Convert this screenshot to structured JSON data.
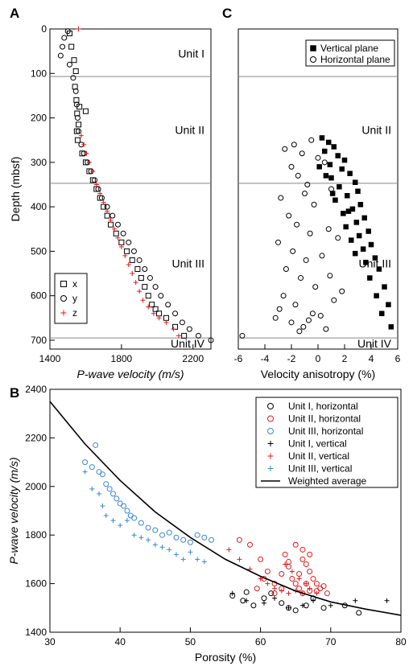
{
  "chart_data": [
    {
      "panel": "A",
      "type": "scatter",
      "xlabel": "P-wave velocity (m/s)",
      "ylabel": "Depth (mbsf)",
      "xlim": [
        1400,
        2300
      ],
      "ylim": [
        720,
        0
      ],
      "xticks": [
        "1400",
        "1800",
        "2200"
      ],
      "yticks": [
        "0",
        "100",
        "200",
        "300",
        "400",
        "500",
        "600",
        "700"
      ],
      "unit_boundaries": [
        107,
        347,
        695
      ],
      "units": [
        {
          "label": "Unit I",
          "depth": 55
        },
        {
          "label": "Unit II",
          "depth": 227
        },
        {
          "label": "Unit III",
          "depth": 527
        },
        {
          "label": "Unit IV",
          "depth": 707
        }
      ],
      "legend": {
        "position": "bottom-left"
      },
      "series": [
        {
          "name": "x",
          "marker": "square",
          "color": "#000000",
          "x": [
            1510,
            1520,
            1535,
            1545,
            1540,
            1548,
            1552,
            1560,
            1550,
            1555,
            1565,
            1600,
            1580,
            1600,
            1620,
            1640,
            1660,
            1680,
            1700,
            1720,
            1740,
            1770,
            1800,
            1830,
            1860,
            1890,
            1910,
            1930,
            1950,
            1970,
            1990,
            2010,
            2050,
            2100,
            2150
          ],
          "y": [
            10,
            40,
            70,
            95,
            130,
            160,
            190,
            215,
            230,
            250,
            175,
            185,
            280,
            300,
            320,
            340,
            360,
            380,
            400,
            420,
            440,
            460,
            480,
            500,
            520,
            540,
            560,
            580,
            600,
            620,
            630,
            640,
            650,
            670,
            690
          ]
        },
        {
          "name": "y",
          "marker": "circle",
          "color": "#000000",
          "x": [
            1500,
            1480,
            1470,
            1460,
            1510,
            1530,
            1545,
            1550,
            1555,
            1560,
            1575,
            1590,
            1610,
            1630,
            1650,
            1670,
            1690,
            1720,
            1750,
            1780,
            1810,
            1840,
            1870,
            1900,
            1930,
            1960,
            1990,
            2020,
            2060,
            2100,
            2140,
            2180,
            2230,
            2300
          ],
          "y": [
            5,
            20,
            40,
            60,
            80,
            110,
            140,
            170,
            200,
            230,
            260,
            280,
            300,
            320,
            340,
            360,
            380,
            400,
            420,
            440,
            460,
            480,
            500,
            520,
            540,
            560,
            580,
            600,
            620,
            640,
            660,
            675,
            690,
            700
          ]
        },
        {
          "name": "z",
          "marker": "plus",
          "color": "#e41a1c",
          "x": [
            1560,
            1575,
            1590,
            1605,
            1620,
            1640,
            1660,
            1680,
            1700,
            1720,
            1740,
            1760,
            1780,
            1800,
            1820,
            1840,
            1860,
            1880,
            1900,
            1920,
            1950,
            1980,
            2010,
            2050,
            2090,
            2120
          ],
          "y": [
            0,
            240,
            260,
            280,
            300,
            320,
            350,
            370,
            390,
            410,
            430,
            450,
            470,
            490,
            510,
            530,
            550,
            570,
            590,
            610,
            625,
            640,
            650,
            660,
            675,
            690
          ]
        }
      ]
    },
    {
      "panel": "C",
      "type": "scatter",
      "xlabel": "Velocity anisotropy (%)",
      "xlim": [
        -6,
        6
      ],
      "ylim": [
        720,
        0
      ],
      "xticks": [
        "-6",
        "-4",
        "-2",
        "0",
        "2",
        "4",
        "6"
      ],
      "unit_boundaries": [
        107,
        347,
        695
      ],
      "units": [
        {
          "label": "Unit I",
          "depth": 55
        },
        {
          "label": "Unit II",
          "depth": 227
        },
        {
          "label": "Unit III",
          "depth": 527
        },
        {
          "label": "Unit IV",
          "depth": 707
        }
      ],
      "legend": {
        "position": "top-right"
      },
      "series": [
        {
          "name": "Vertical plane",
          "marker": "filled-square",
          "color": "#000000",
          "x": [
            0.3,
            0.8,
            1.2,
            0.5,
            1.5,
            2.0,
            0.9,
            1.8,
            2.4,
            1.0,
            2.8,
            1.6,
            3.0,
            2.2,
            1.3,
            3.2,
            2.6,
            1.9,
            3.5,
            2.9,
            2.1,
            3.8,
            3.1,
            2.5,
            4.0,
            3.4,
            2.8,
            4.3,
            3.6,
            4.6,
            3.9,
            5.0,
            4.4,
            5.3,
            4.8,
            5.5,
            0.1,
            0.6,
            1.1,
            2.3
          ],
          "y": [
            245,
            255,
            265,
            275,
            285,
            295,
            305,
            315,
            325,
            335,
            345,
            355,
            365,
            375,
            385,
            395,
            405,
            415,
            425,
            435,
            445,
            455,
            465,
            475,
            485,
            495,
            505,
            515,
            525,
            540,
            560,
            580,
            600,
            620,
            640,
            670,
            310,
            330,
            370,
            410
          ]
        },
        {
          "name": "Horizontal plane",
          "marker": "circle",
          "color": "#000000",
          "x": [
            -2.5,
            -1.8,
            -1.2,
            -0.5,
            0.0,
            -2.0,
            -1.5,
            -0.8,
            0.5,
            -2.8,
            -1.0,
            -0.3,
            1.0,
            -2.2,
            -1.6,
            -0.6,
            0.8,
            -3.0,
            -1.9,
            -0.9,
            0.3,
            1.5,
            -2.4,
            -1.3,
            -0.2,
            0.9,
            -2.6,
            -1.7,
            -0.4,
            1.2,
            -3.2,
            -2.0,
            -1.1,
            0.2,
            1.8,
            -2.9,
            -1.4,
            -0.7,
            0.6,
            -5.7
          ],
          "y": [
            270,
            260,
            280,
            250,
            290,
            310,
            330,
            350,
            300,
            380,
            370,
            395,
            360,
            420,
            440,
            460,
            450,
            480,
            500,
            520,
            510,
            470,
            540,
            560,
            580,
            555,
            600,
            620,
            640,
            610,
            650,
            660,
            670,
            645,
            590,
            630,
            680,
            655,
            675,
            690
          ]
        }
      ]
    },
    {
      "panel": "B",
      "type": "scatter",
      "xlabel": "Porosity (%)",
      "ylabel": "P-wave velocity (m/s)",
      "xlim": [
        30,
        80
      ],
      "ylim": [
        1400,
        2400
      ],
      "xticks": [
        "30",
        "40",
        "50",
        "60",
        "70",
        "80"
      ],
      "yticks": [
        "1400",
        "1600",
        "1800",
        "2000",
        "2200",
        "2400"
      ],
      "legend": {
        "position": "top-right"
      },
      "series": [
        {
          "name": "Unit I, horizontal",
          "marker": "circle",
          "color": "#000000",
          "x": [
            56,
            57.5,
            59,
            60.5,
            61.5,
            63,
            64,
            65,
            66.5,
            67.5,
            69,
            72,
            74,
            58
          ],
          "y": [
            1550,
            1530,
            1510,
            1540,
            1560,
            1520,
            1500,
            1490,
            1510,
            1540,
            1500,
            1510,
            1480,
            1565
          ]
        },
        {
          "name": "Unit II, horizontal",
          "marker": "circle",
          "color": "#e41a1c",
          "x": [
            57,
            58.5,
            60,
            61,
            62,
            63,
            63.5,
            64,
            64.5,
            65,
            65.5,
            66,
            66.5,
            67,
            67.5,
            68,
            68.5,
            69,
            65,
            66,
            67,
            64,
            63,
            62,
            66,
            67,
            65.5,
            66.5,
            68,
            69.5,
            59.5,
            60.5
          ],
          "y": [
            1780,
            1760,
            1700,
            1650,
            1600,
            1580,
            1720,
            1690,
            1620,
            1600,
            1580,
            1700,
            1680,
            1650,
            1620,
            1600,
            1580,
            1590,
            1760,
            1740,
            1720,
            1670,
            1640,
            1560,
            1560,
            1570,
            1640,
            1600,
            1570,
            1560,
            1580,
            1620
          ]
        },
        {
          "name": "Unit III, horizontal",
          "marker": "circle",
          "color": "#3a86d8",
          "x": [
            35,
            36,
            36.5,
            37,
            37.5,
            38,
            38.5,
            39,
            39.5,
            40,
            40.5,
            41,
            41.5,
            42,
            43,
            44,
            45,
            46,
            47,
            48,
            49,
            50,
            51,
            52,
            53
          ],
          "y": [
            2100,
            2080,
            2170,
            2060,
            2050,
            2010,
            1990,
            1970,
            1950,
            1930,
            1920,
            1900,
            1880,
            1870,
            1850,
            1830,
            1820,
            1800,
            1810,
            1790,
            1780,
            1770,
            1800,
            1790,
            1780
          ]
        },
        {
          "name": "Unit I, vertical",
          "marker": "plus",
          "color": "#000000",
          "x": [
            56,
            58,
            60.5,
            62,
            64,
            66,
            67.5,
            70,
            73.5,
            78
          ],
          "y": [
            1560,
            1530,
            1520,
            1540,
            1500,
            1510,
            1530,
            1510,
            1530,
            1530
          ]
        },
        {
          "name": "Unit II, vertical",
          "marker": "plus",
          "color": "#e41a1c",
          "x": [
            55.5,
            57,
            58.5,
            60,
            61,
            62,
            63,
            64,
            65,
            66,
            67,
            68,
            63.5,
            64.5,
            65.5,
            66.5
          ],
          "y": [
            1740,
            1700,
            1660,
            1620,
            1600,
            1580,
            1570,
            1560,
            1570,
            1560,
            1580,
            1560,
            1680,
            1650,
            1620,
            1600
          ]
        },
        {
          "name": "Unit III, vertical",
          "marker": "plus",
          "color": "#3a86d8",
          "x": [
            35,
            36,
            37,
            37.5,
            38,
            39,
            40,
            41,
            42,
            43,
            44,
            45,
            46,
            47,
            48,
            49,
            50,
            51,
            52
          ],
          "y": [
            2060,
            1990,
            1970,
            1920,
            1880,
            1860,
            1840,
            1860,
            1800,
            1790,
            1780,
            1760,
            1750,
            1740,
            1720,
            1700,
            1730,
            1700,
            1690
          ]
        },
        {
          "name": "Weighted average",
          "marker": "line",
          "color": "#000000",
          "x": [
            30,
            35,
            40,
            45,
            50,
            55,
            60,
            65,
            70,
            75,
            80
          ],
          "y": [
            2350,
            2175,
            2025,
            1895,
            1790,
            1700,
            1630,
            1570,
            1525,
            1495,
            1470
          ]
        }
      ]
    }
  ]
}
